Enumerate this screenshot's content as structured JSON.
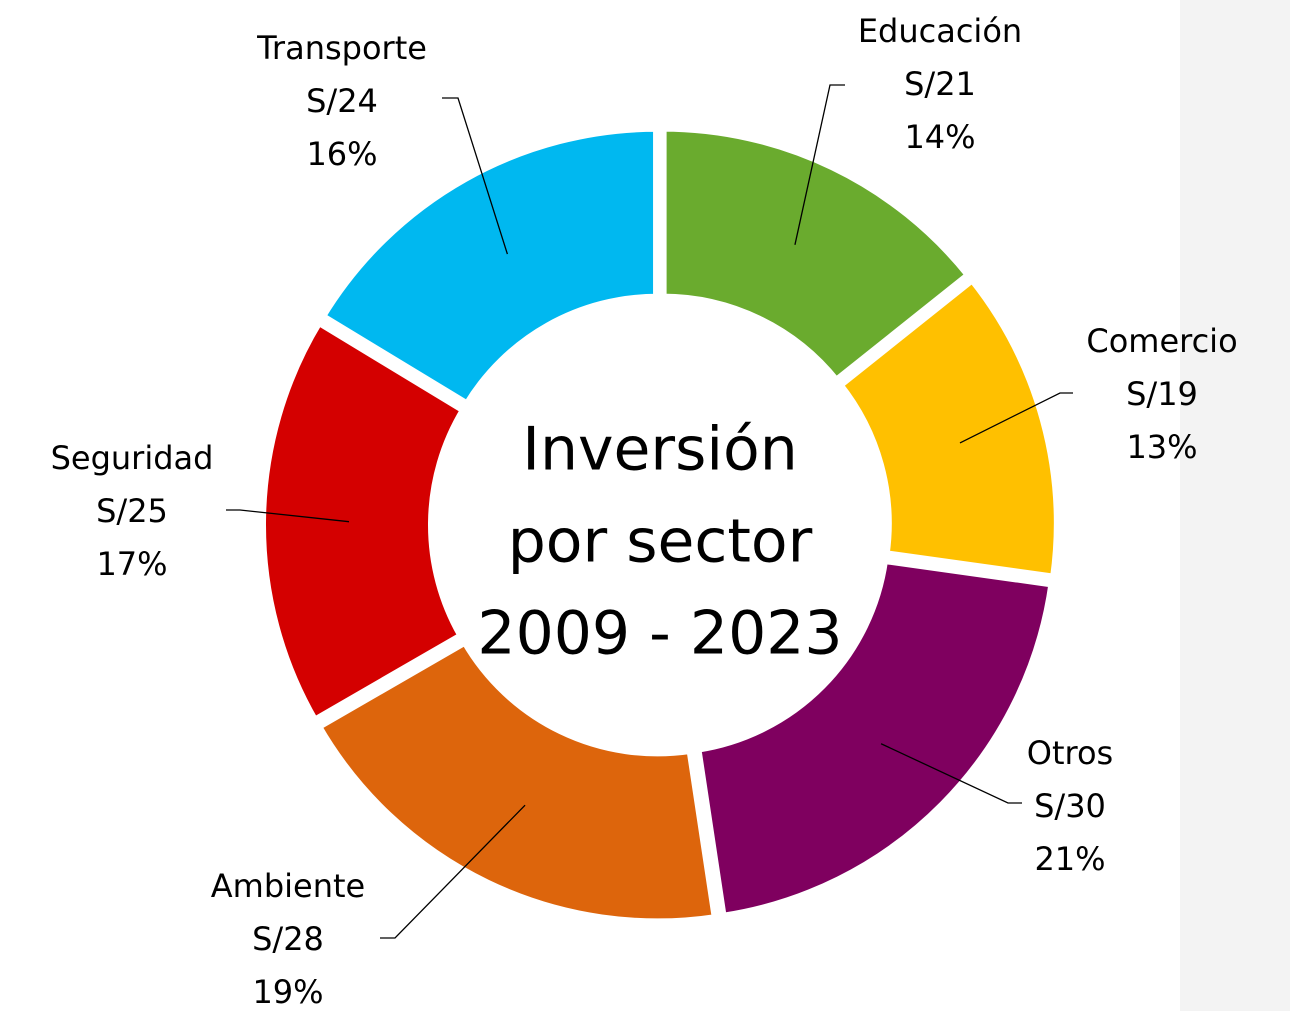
{
  "chart_data": {
    "type": "donut",
    "title_lines": [
      "Inversión",
      "por sector",
      "2009 - 2023"
    ],
    "categories": [
      "Educación",
      "Comercio",
      "Otros",
      "Ambiente",
      "Seguridad",
      "Transporte"
    ],
    "values": [
      21,
      19,
      30,
      28,
      25,
      24
    ],
    "value_labels": [
      "S/21",
      "S/19",
      "S/30",
      "S/28",
      "S/25",
      "S/24"
    ],
    "percents": [
      14,
      13,
      21,
      19,
      17,
      16
    ],
    "percent_labels": [
      "14%",
      "13%",
      "21%",
      "19%",
      "17%",
      "16%"
    ],
    "colors": [
      "#6aab2e",
      "#ffc000",
      "#7f005f",
      "#dd650c",
      "#d40000",
      "#00b8f0"
    ]
  }
}
